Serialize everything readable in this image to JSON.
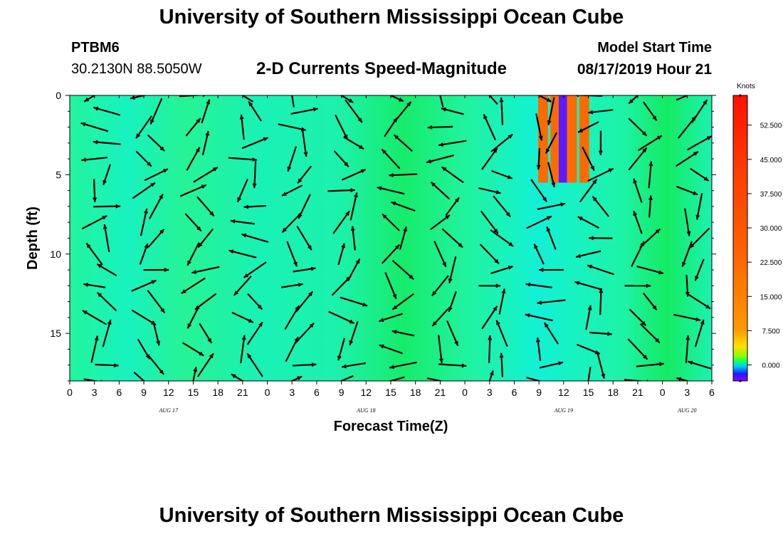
{
  "header": {
    "title": "University of Southern Mississippi Ocean Cube",
    "station_id": "PTBM6",
    "station_location": "30.2130N 88.5050W",
    "subtitle": "2-D Currents Speed-Magnitude",
    "start_label": "Model Start Time",
    "start_value": "08/17/2019 Hour 21"
  },
  "footer": {
    "title": "University of Southern Mississippi Ocean Cube"
  },
  "chart_data": {
    "type": "heatmap",
    "title": "2-D Currents Speed-Magnitude",
    "xlabel": "Forecast Time(Z)",
    "ylabel": "Depth (ft)",
    "x_range_hours": [
      0,
      78
    ],
    "y_range_ft": [
      0,
      18
    ],
    "x_ticks": [
      "0",
      "3",
      "6",
      "9",
      "12",
      "15",
      "18",
      "21",
      "0",
      "3",
      "6",
      "9",
      "12",
      "15",
      "18",
      "21",
      "0",
      "3",
      "6",
      "9",
      "12",
      "15",
      "18",
      "21",
      "0",
      "3",
      "6"
    ],
    "date_labels": [
      {
        "label": "AUG 17",
        "hour": 12
      },
      {
        "label": "AUG 18",
        "hour": 36
      },
      {
        "label": "AUG 19",
        "hour": 60
      },
      {
        "label": "AUG 20",
        "hour": 75
      }
    ],
    "y_ticks": [
      0,
      5,
      10,
      15
    ],
    "colorbar": {
      "unit": "Knots",
      "range": [
        -3.5,
        59
      ],
      "ticks": [
        "0.000",
        "7.500",
        "15.000",
        "22.500",
        "30.000",
        "37.500",
        "45.000",
        "52.500"
      ],
      "tick_values": [
        0,
        7.5,
        15,
        22.5,
        30,
        37.5,
        45,
        52.5
      ]
    },
    "arrow_columns_hours": [
      3,
      9,
      15,
      21,
      27,
      33,
      39,
      45,
      51,
      57,
      63,
      69,
      75
    ],
    "arrow_columns_shifted_hours": [
      4.5,
      10.5,
      16.5,
      22.5,
      28.5,
      34.5,
      40.5,
      46.5,
      52.5,
      58.5,
      64.5,
      70.5,
      76.5
    ],
    "arrow_rows_ft": [
      0,
      2,
      4,
      6,
      8,
      10,
      12,
      14,
      16,
      18
    ],
    "arrow_rows_shifted_ft": [
      1,
      3,
      5,
      7,
      9,
      11,
      13,
      15,
      17
    ],
    "high_speed_columns": [
      {
        "hour": 57.5,
        "depth_top": 0,
        "depth_bottom": 5.5,
        "speed": 30
      },
      {
        "hour": 59,
        "depth_top": 0,
        "depth_bottom": 5.5,
        "speed": 26
      },
      {
        "hour": 60,
        "depth_top": 0,
        "depth_bottom": 5.5,
        "speed": -1
      },
      {
        "hour": 61,
        "depth_top": 0,
        "depth_bottom": 5.5,
        "speed": 28
      },
      {
        "hour": 62.5,
        "depth_top": 0,
        "depth_bottom": 5.5,
        "speed": 31
      }
    ]
  }
}
